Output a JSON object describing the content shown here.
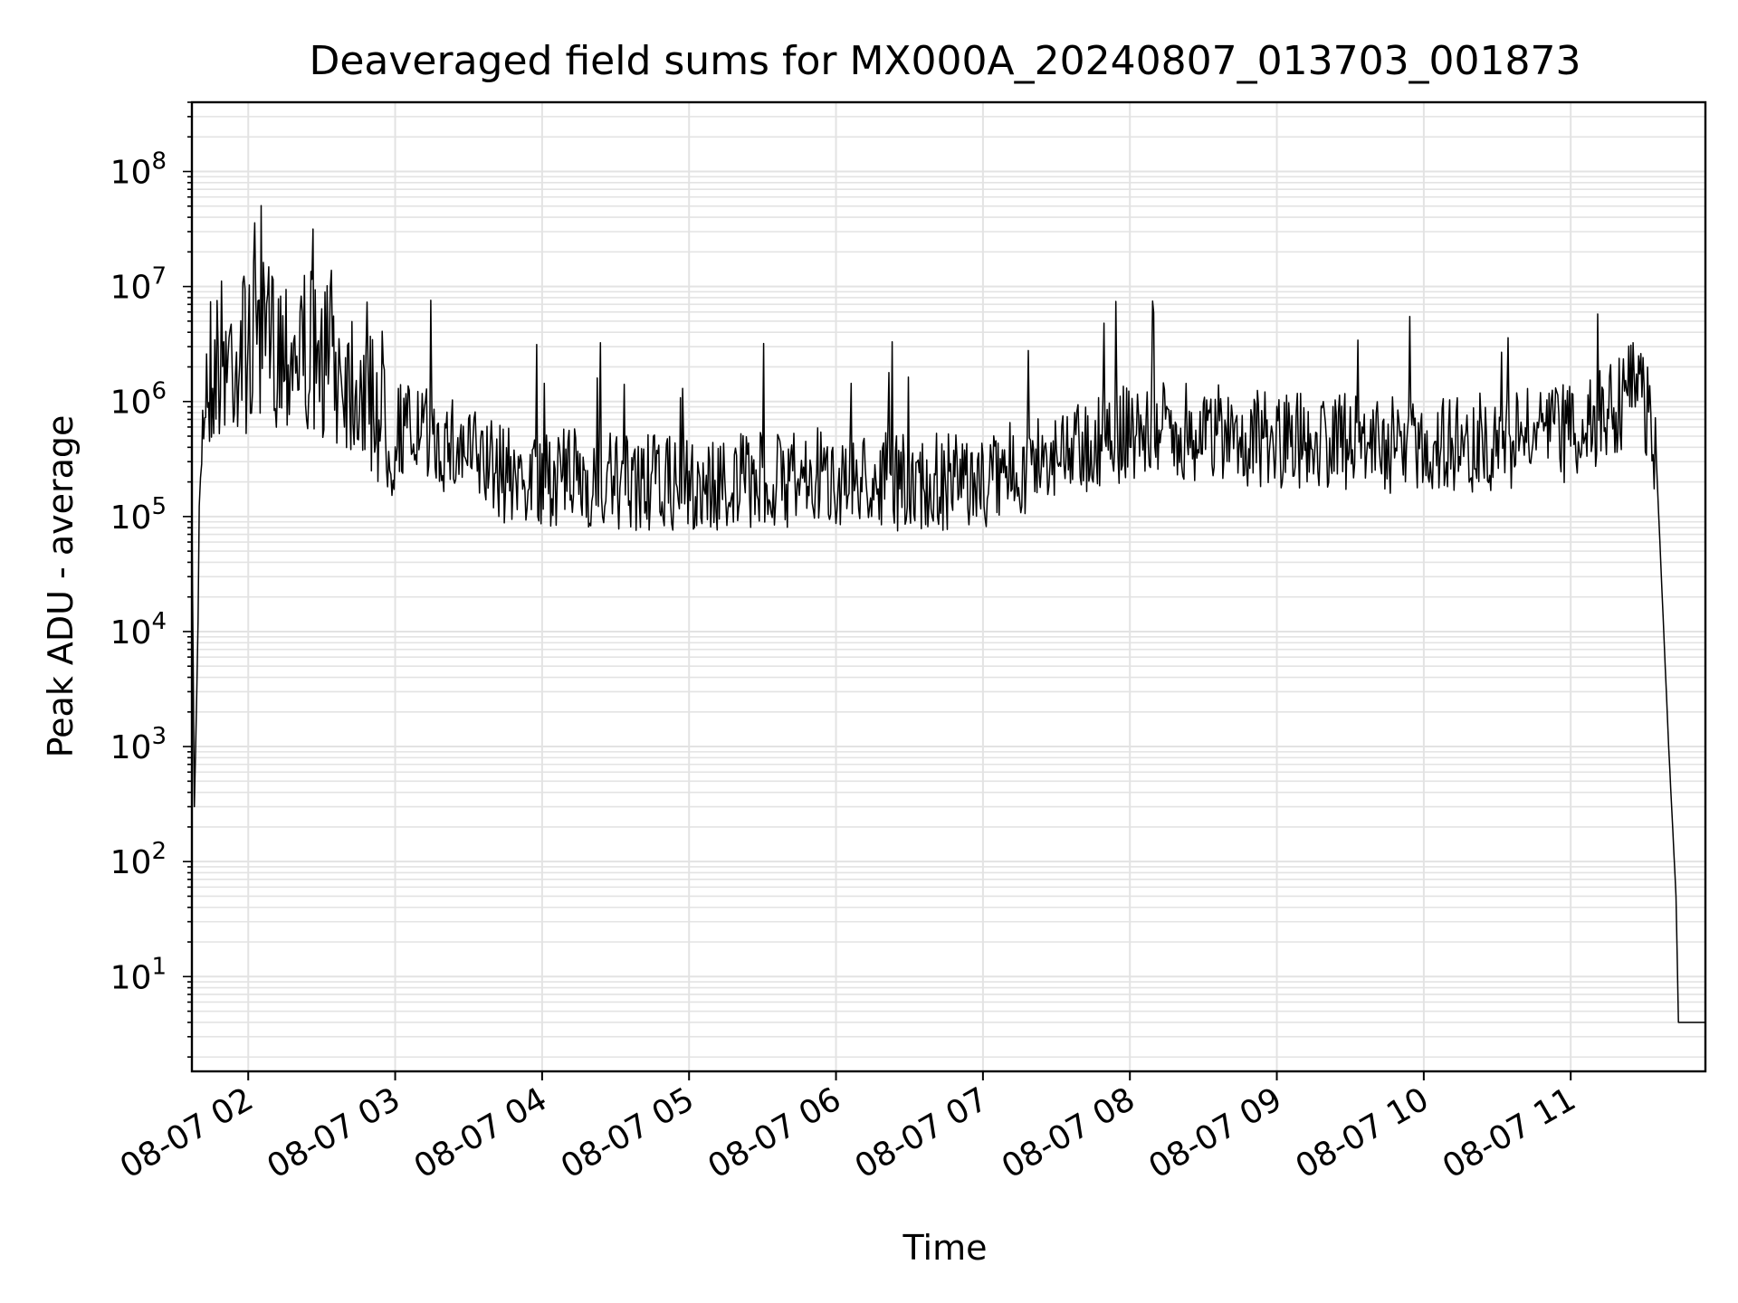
{
  "chart_data": {
    "type": "line",
    "title": "Deaveraged field sums for MX000A_20240807_013703_001873",
    "xlabel": "Time",
    "ylabel": "Peak ADU - average",
    "yscale": "log",
    "grid": true,
    "line_color": "#000000",
    "x_range": [
      "2024-08-07 01:37",
      "2024-08-07 11:55"
    ],
    "ylim": [
      1.5,
      400000000
    ],
    "x_ticks": [
      {
        "t": "2024-08-07 02:00",
        "label": "08-07 02"
      },
      {
        "t": "2024-08-07 03:00",
        "label": "08-07 03"
      },
      {
        "t": "2024-08-07 04:00",
        "label": "08-07 04"
      },
      {
        "t": "2024-08-07 05:00",
        "label": "08-07 05"
      },
      {
        "t": "2024-08-07 06:00",
        "label": "08-07 06"
      },
      {
        "t": "2024-08-07 07:00",
        "label": "08-07 07"
      },
      {
        "t": "2024-08-07 08:00",
        "label": "08-07 08"
      },
      {
        "t": "2024-08-07 09:00",
        "label": "08-07 09"
      },
      {
        "t": "2024-08-07 10:00",
        "label": "08-07 10"
      },
      {
        "t": "2024-08-07 11:00",
        "label": "08-07 11"
      }
    ],
    "y_ticks": [
      {
        "value": 10,
        "base": "10",
        "exp": "1"
      },
      {
        "value": 100,
        "base": "10",
        "exp": "2"
      },
      {
        "value": 1000,
        "base": "10",
        "exp": "3"
      },
      {
        "value": 10000,
        "base": "10",
        "exp": "4"
      },
      {
        "value": 100000,
        "base": "10",
        "exp": "5"
      },
      {
        "value": 1000000,
        "base": "10",
        "exp": "6"
      },
      {
        "value": 10000000,
        "base": "10",
        "exp": "7"
      },
      {
        "value": 100000000,
        "base": "10",
        "exp": "8"
      }
    ],
    "series": [
      {
        "x": [
          "2024-08-07 01:37",
          "2024-08-07 01:38",
          "2024-08-07 01:39",
          "2024-08-07 01:40",
          "2024-08-07 01:41",
          "2024-08-07 01:43",
          "2024-08-07 01:45",
          "2024-08-07 01:50",
          "2024-08-07 02:00",
          "2024-08-07 02:15",
          "2024-08-07 02:30",
          "2024-08-07 02:45",
          "2024-08-07 03:00",
          "2024-08-07 03:15",
          "2024-08-07 03:30",
          "2024-08-07 03:45",
          "2024-08-07 04:00",
          "2024-08-07 04:30",
          "2024-08-07 05:00",
          "2024-08-07 05:30",
          "2024-08-07 06:00",
          "2024-08-07 06:30",
          "2024-08-07 07:00",
          "2024-08-07 07:30",
          "2024-08-07 08:00",
          "2024-08-07 08:30",
          "2024-08-07 09:00",
          "2024-08-07 09:30",
          "2024-08-07 10:00",
          "2024-08-07 10:30",
          "2024-08-07 11:00",
          "2024-08-07 11:15",
          "2024-08-07 11:25",
          "2024-08-07 11:30",
          "2024-08-07 11:35",
          "2024-08-07 11:40",
          "2024-08-07 11:43",
          "2024-08-07 11:44",
          "2024-08-07 11:45",
          "2024-08-07 11:50",
          "2024-08-07 11:55"
        ],
        "y": [
          100000,
          300,
          3000,
          50000,
          500000,
          2000000,
          2500000,
          3000000,
          3500000,
          4000000,
          3000000,
          2000000,
          700000,
          500000,
          400000,
          250000,
          250000,
          220000,
          200000,
          220000,
          250000,
          220000,
          220000,
          400000,
          600000,
          600000,
          500000,
          500000,
          450000,
          500000,
          600000,
          800000,
          1400000,
          1200000,
          300000,
          1000,
          50,
          4,
          4,
          4,
          4
        ],
        "name": ""
      }
    ],
    "noise_note": ""
  }
}
